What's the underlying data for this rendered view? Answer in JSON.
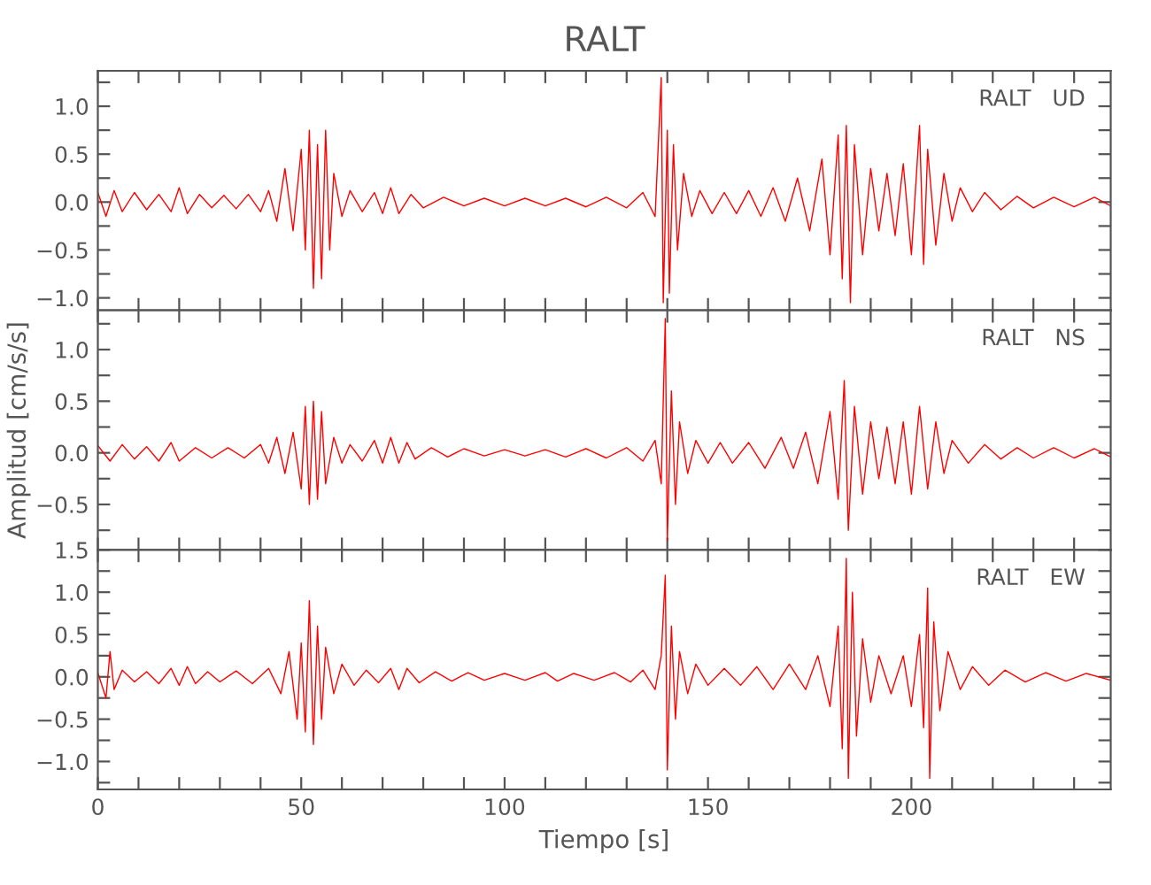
{
  "chart_data": [
    {
      "type": "line",
      "title": "RALT",
      "annotations": [
        "RALT   UD"
      ],
      "xlim": [
        0,
        249
      ],
      "ylim": [
        -1.13,
        1.37
      ],
      "tick_labels": "y",
      "grid": false,
      "marker": "none",
      "line_style": "solid",
      "xticks": [
        {
          "value": 0,
          "label": null
        },
        {
          "value": 10,
          "label": null
        },
        {
          "value": 20,
          "label": null
        },
        {
          "value": 30,
          "label": null
        },
        {
          "value": 40,
          "label": null
        },
        {
          "value": 50,
          "label": null
        },
        {
          "value": 60,
          "label": null
        },
        {
          "value": 70,
          "label": null
        },
        {
          "value": 80,
          "label": null
        },
        {
          "value": 90,
          "label": null
        },
        {
          "value": 100,
          "label": null
        },
        {
          "value": 110,
          "label": null
        },
        {
          "value": 120,
          "label": null
        },
        {
          "value": 130,
          "label": null
        },
        {
          "value": 140,
          "label": null
        },
        {
          "value": 150,
          "label": null
        },
        {
          "value": 160,
          "label": null
        },
        {
          "value": 170,
          "label": null
        },
        {
          "value": 180,
          "label": null
        },
        {
          "value": 190,
          "label": null
        },
        {
          "value": 200,
          "label": null
        },
        {
          "value": 210,
          "label": null
        },
        {
          "value": 220,
          "label": null
        },
        {
          "value": 230,
          "label": null
        },
        {
          "value": 240,
          "label": null
        }
      ],
      "yticks": [
        {
          "value": -1.0,
          "label": "−1.0"
        },
        {
          "value": -0.75,
          "label": null
        },
        {
          "value": -0.5,
          "label": "−0.5"
        },
        {
          "value": -0.25,
          "label": null
        },
        {
          "value": 0.0,
          "label": "0.0"
        },
        {
          "value": 0.25,
          "label": null
        },
        {
          "value": 0.5,
          "label": "0.5"
        },
        {
          "value": 0.75,
          "label": null
        },
        {
          "value": 1.0,
          "label": "1.0"
        },
        {
          "value": 1.25,
          "label": null
        }
      ],
      "series": [
        {
          "color": "#ff0000",
          "x": [
            0,
            2,
            4,
            6,
            9,
            12,
            15,
            18,
            20,
            22,
            25,
            28,
            31,
            34,
            37,
            40,
            42,
            44,
            46,
            48,
            50,
            51,
            52,
            53,
            54,
            55,
            56,
            57,
            58,
            60,
            62,
            65,
            68,
            70,
            72,
            74,
            77,
            80,
            85,
            90,
            95,
            100,
            105,
            110,
            115,
            120,
            125,
            130,
            134,
            137,
            138.5,
            139,
            140,
            140.5,
            141.5,
            142.5,
            144,
            146,
            148,
            151,
            154,
            157,
            160,
            163,
            166,
            169,
            172,
            175,
            178,
            180,
            182,
            183,
            184,
            185,
            186,
            188,
            190,
            192,
            194,
            196,
            198,
            200,
            202,
            203,
            204,
            206,
            208,
            210,
            212,
            215,
            218,
            222,
            226,
            230,
            235,
            240,
            245,
            249
          ],
          "values": [
            0.1,
            -0.15,
            0.12,
            -0.1,
            0.1,
            -0.08,
            0.08,
            -0.1,
            0.15,
            -0.12,
            0.08,
            -0.06,
            0.07,
            -0.07,
            0.08,
            -0.1,
            0.12,
            -0.2,
            0.35,
            -0.3,
            0.55,
            -0.5,
            0.75,
            -0.9,
            0.6,
            -0.8,
            0.75,
            -0.5,
            0.3,
            -0.15,
            0.12,
            -0.1,
            0.1,
            -0.12,
            0.15,
            -0.12,
            0.08,
            -0.06,
            0.05,
            -0.04,
            0.04,
            -0.04,
            0.04,
            -0.04,
            0.04,
            -0.05,
            0.05,
            -0.06,
            0.1,
            -0.15,
            1.3,
            -1.05,
            0.75,
            -0.95,
            0.6,
            -0.5,
            0.3,
            -0.15,
            0.12,
            -0.12,
            0.1,
            -0.12,
            0.12,
            -0.15,
            0.15,
            -0.2,
            0.25,
            -0.3,
            0.45,
            -0.55,
            0.7,
            -0.8,
            0.8,
            -1.05,
            0.6,
            -0.55,
            0.35,
            -0.3,
            0.3,
            -0.35,
            0.4,
            -0.55,
            0.8,
            -0.65,
            0.55,
            -0.45,
            0.3,
            -0.2,
            0.15,
            -0.1,
            0.1,
            -0.08,
            0.06,
            -0.06,
            0.05,
            -0.05,
            0.05,
            -0.04
          ]
        }
      ]
    },
    {
      "type": "line",
      "ylabel": "Amplitud [cm/s/s]",
      "annotations": [
        "RALT   NS"
      ],
      "xlim": [
        0,
        249
      ],
      "ylim": [
        -0.94,
        1.38
      ],
      "tick_labels": "y",
      "grid": false,
      "marker": "none",
      "line_style": "solid",
      "xticks": [
        {
          "value": 0,
          "label": null
        },
        {
          "value": 10,
          "label": null
        },
        {
          "value": 20,
          "label": null
        },
        {
          "value": 30,
          "label": null
        },
        {
          "value": 40,
          "label": null
        },
        {
          "value": 50,
          "label": null
        },
        {
          "value": 60,
          "label": null
        },
        {
          "value": 70,
          "label": null
        },
        {
          "value": 80,
          "label": null
        },
        {
          "value": 90,
          "label": null
        },
        {
          "value": 100,
          "label": null
        },
        {
          "value": 110,
          "label": null
        },
        {
          "value": 120,
          "label": null
        },
        {
          "value": 130,
          "label": null
        },
        {
          "value": 140,
          "label": null
        },
        {
          "value": 150,
          "label": null
        },
        {
          "value": 160,
          "label": null
        },
        {
          "value": 170,
          "label": null
        },
        {
          "value": 180,
          "label": null
        },
        {
          "value": 190,
          "label": null
        },
        {
          "value": 200,
          "label": null
        },
        {
          "value": 210,
          "label": null
        },
        {
          "value": 220,
          "label": null
        },
        {
          "value": 230,
          "label": null
        },
        {
          "value": 240,
          "label": null
        }
      ],
      "yticks": [
        {
          "value": -0.75,
          "label": null
        },
        {
          "value": -0.5,
          "label": "−0.5"
        },
        {
          "value": -0.25,
          "label": null
        },
        {
          "value": 0.0,
          "label": "0.0"
        },
        {
          "value": 0.25,
          "label": null
        },
        {
          "value": 0.5,
          "label": "0.5"
        },
        {
          "value": 0.75,
          "label": null
        },
        {
          "value": 1.0,
          "label": "1.0"
        },
        {
          "value": 1.25,
          "label": null
        }
      ],
      "series": [
        {
          "color": "#ff0000",
          "x": [
            0,
            3,
            6,
            9,
            12,
            15,
            18,
            20,
            24,
            28,
            32,
            36,
            40,
            42,
            44,
            46,
            48,
            50,
            51,
            52,
            53,
            54,
            55,
            56,
            58,
            60,
            62,
            65,
            68,
            70,
            72,
            74,
            76,
            78,
            82,
            86,
            90,
            95,
            100,
            105,
            110,
            115,
            120,
            125,
            130,
            134,
            137,
            138.5,
            139.5,
            140,
            141,
            142,
            143,
            145,
            147,
            150,
            153,
            156,
            160,
            164,
            168,
            171,
            174,
            177,
            180,
            182,
            183.5,
            184.5,
            186,
            188,
            190,
            192,
            194,
            196,
            198,
            200,
            202,
            204,
            206,
            208,
            210,
            214,
            218,
            222,
            226,
            230,
            235,
            240,
            245,
            249
          ],
          "values": [
            0.07,
            -0.08,
            0.08,
            -0.06,
            0.06,
            -0.08,
            0.1,
            -0.08,
            0.05,
            -0.05,
            0.05,
            -0.05,
            0.08,
            -0.1,
            0.15,
            -0.2,
            0.2,
            -0.35,
            0.45,
            -0.5,
            0.5,
            -0.45,
            0.4,
            -0.3,
            0.15,
            -0.1,
            0.08,
            -0.08,
            0.12,
            -0.1,
            0.15,
            -0.1,
            0.1,
            -0.06,
            0.05,
            -0.04,
            0.04,
            -0.03,
            0.03,
            -0.03,
            0.03,
            -0.04,
            0.04,
            -0.05,
            0.05,
            -0.08,
            0.12,
            -0.3,
            1.3,
            -0.85,
            0.6,
            -0.5,
            0.3,
            -0.2,
            0.12,
            -0.1,
            0.1,
            -0.1,
            0.1,
            -0.15,
            0.15,
            -0.15,
            0.2,
            -0.3,
            0.4,
            -0.45,
            0.7,
            -0.75,
            0.45,
            -0.4,
            0.3,
            -0.25,
            0.25,
            -0.3,
            0.3,
            -0.4,
            0.45,
            -0.35,
            0.3,
            -0.2,
            0.12,
            -0.1,
            0.08,
            -0.06,
            0.05,
            -0.05,
            0.05,
            -0.05,
            0.04,
            -0.04
          ]
        }
      ]
    },
    {
      "type": "line",
      "xlabel": "Tiempo [s]",
      "annotations": [
        "RALT   EW"
      ],
      "xlim": [
        0,
        249
      ],
      "ylim": [
        -1.33,
        1.5
      ],
      "grid": false,
      "marker": "none",
      "line_style": "solid",
      "xticks": [
        {
          "value": 0,
          "label": "0"
        },
        {
          "value": 10,
          "label": null
        },
        {
          "value": 20,
          "label": null
        },
        {
          "value": 30,
          "label": null
        },
        {
          "value": 40,
          "label": null
        },
        {
          "value": 50,
          "label": "50"
        },
        {
          "value": 60,
          "label": null
        },
        {
          "value": 70,
          "label": null
        },
        {
          "value": 80,
          "label": null
        },
        {
          "value": 90,
          "label": null
        },
        {
          "value": 100,
          "label": "100"
        },
        {
          "value": 110,
          "label": null
        },
        {
          "value": 120,
          "label": null
        },
        {
          "value": 130,
          "label": null
        },
        {
          "value": 140,
          "label": null
        },
        {
          "value": 150,
          "label": "150"
        },
        {
          "value": 160,
          "label": null
        },
        {
          "value": 170,
          "label": null
        },
        {
          "value": 180,
          "label": null
        },
        {
          "value": 190,
          "label": null
        },
        {
          "value": 200,
          "label": "200"
        },
        {
          "value": 210,
          "label": null
        },
        {
          "value": 220,
          "label": null
        },
        {
          "value": 230,
          "label": null
        },
        {
          "value": 240,
          "label": null
        }
      ],
      "yticks": [
        {
          "value": -1.25,
          "label": null
        },
        {
          "value": -1.0,
          "label": "−1.0"
        },
        {
          "value": -0.75,
          "label": null
        },
        {
          "value": -0.5,
          "label": "−0.5"
        },
        {
          "value": -0.25,
          "label": null
        },
        {
          "value": 0.0,
          "label": "0.0"
        },
        {
          "value": 0.25,
          "label": null
        },
        {
          "value": 0.5,
          "label": "0.5"
        },
        {
          "value": 0.75,
          "label": null
        },
        {
          "value": 1.0,
          "label": "1.0"
        },
        {
          "value": 1.25,
          "label": null
        },
        {
          "value": 1.5,
          "label": "1.5"
        }
      ],
      "series": [
        {
          "color": "#ff0000",
          "x": [
            0,
            2,
            3,
            4,
            6,
            9,
            12,
            15,
            18,
            20,
            22,
            24,
            27,
            30,
            34,
            38,
            42,
            45,
            47,
            49,
            50,
            51,
            52,
            53,
            54,
            55,
            56,
            58,
            60,
            63,
            66,
            69,
            72,
            74,
            76,
            79,
            83,
            87,
            91,
            95,
            100,
            105,
            110,
            113,
            117,
            122,
            127,
            131,
            134,
            137,
            138.5,
            139.5,
            140,
            141,
            142,
            143,
            145,
            147,
            150,
            154,
            158,
            162,
            166,
            170,
            174,
            177,
            180,
            182,
            183,
            184,
            184.5,
            185.5,
            186.5,
            188,
            190,
            192,
            195,
            198,
            200,
            202,
            203,
            204,
            204.5,
            205.5,
            207,
            209,
            212,
            215,
            219,
            223,
            228,
            233,
            238,
            243,
            249
          ],
          "values": [
            0.05,
            -0.25,
            0.3,
            -0.15,
            0.08,
            -0.06,
            0.06,
            -0.08,
            0.1,
            -0.1,
            0.12,
            -0.08,
            0.06,
            -0.06,
            0.07,
            -0.08,
            0.1,
            -0.2,
            0.3,
            -0.5,
            0.4,
            -0.65,
            0.9,
            -0.8,
            0.6,
            -0.5,
            0.35,
            -0.2,
            0.15,
            -0.1,
            0.08,
            -0.07,
            0.1,
            -0.15,
            0.1,
            -0.07,
            0.06,
            -0.05,
            0.05,
            -0.04,
            0.04,
            -0.04,
            0.05,
            -0.05,
            0.04,
            -0.04,
            0.05,
            -0.06,
            0.08,
            -0.15,
            0.25,
            1.2,
            -1.1,
            0.6,
            -0.5,
            0.3,
            -0.2,
            0.15,
            -0.1,
            0.1,
            -0.1,
            0.12,
            -0.15,
            0.15,
            -0.15,
            0.25,
            -0.35,
            0.6,
            -0.85,
            1.4,
            -1.2,
            1.0,
            -0.7,
            0.45,
            -0.3,
            0.25,
            -0.2,
            0.25,
            -0.35,
            0.5,
            -0.6,
            1.05,
            -1.2,
            0.65,
            -0.4,
            0.3,
            -0.15,
            0.12,
            -0.1,
            0.08,
            -0.06,
            0.05,
            -0.05,
            0.04,
            -0.04
          ]
        }
      ]
    }
  ]
}
